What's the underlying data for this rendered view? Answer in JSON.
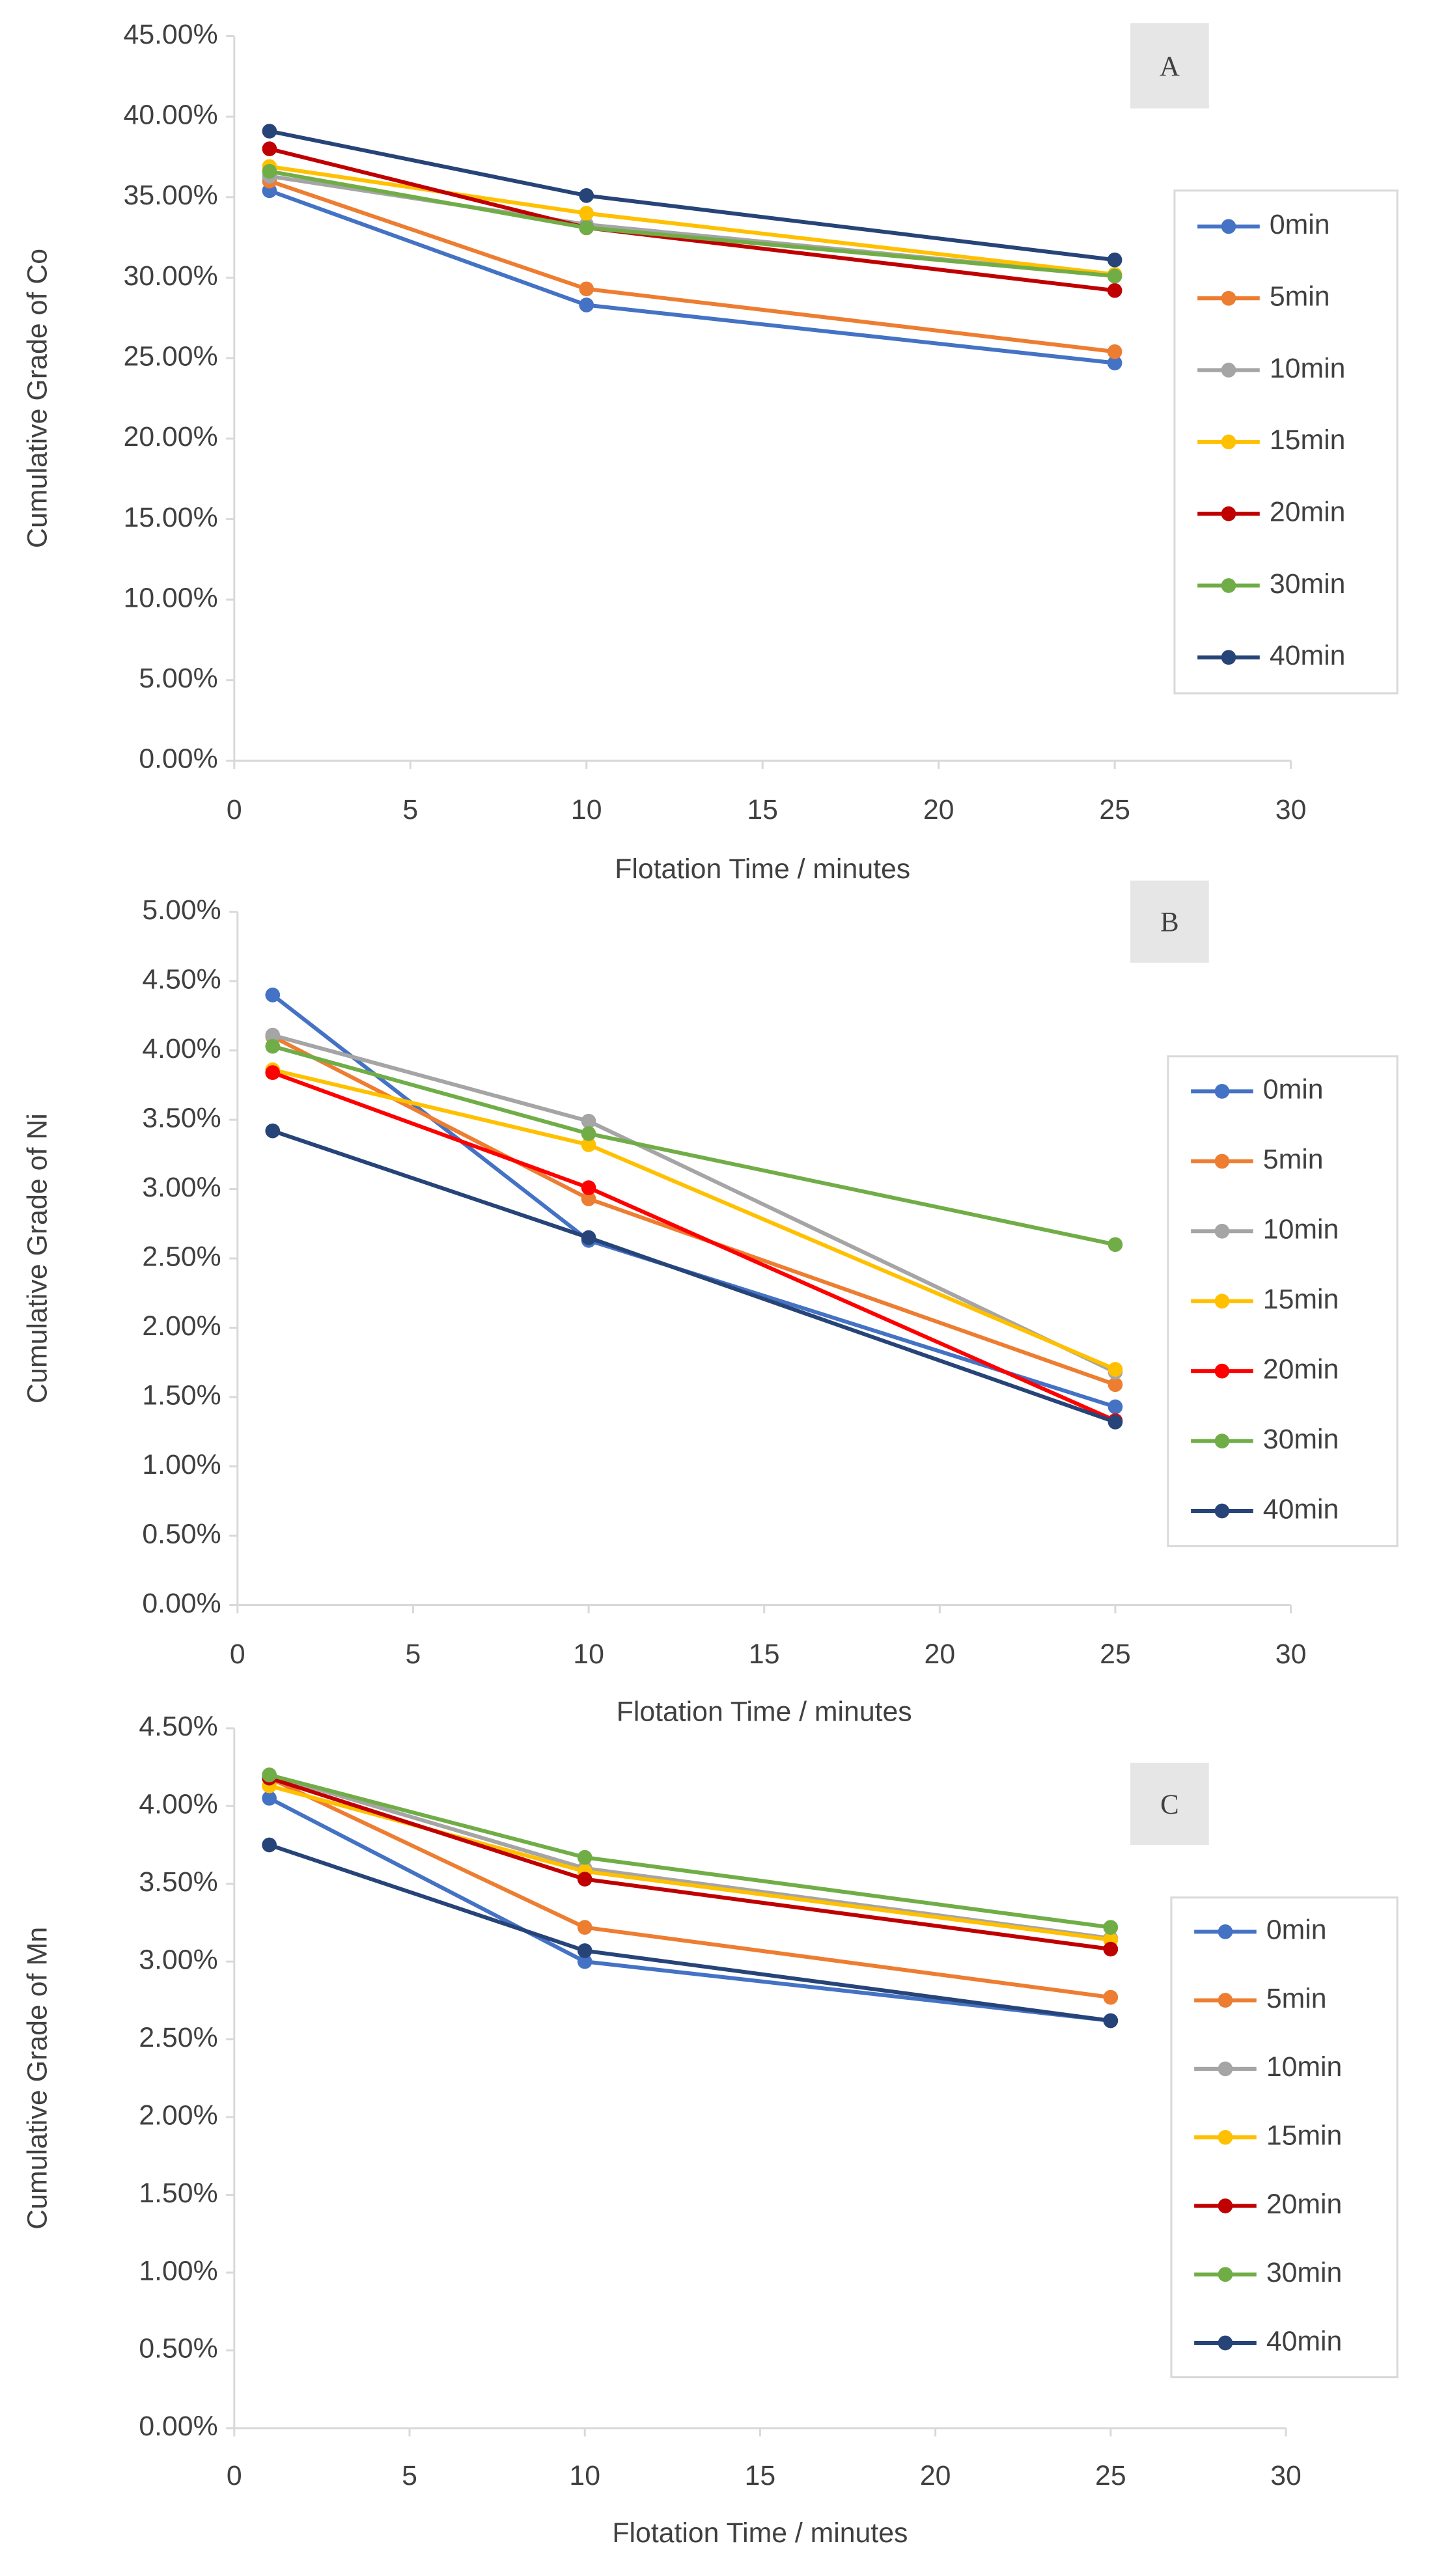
{
  "chart_data": [
    {
      "type": "line",
      "annotation": "A",
      "xlabel": "Flotation Time / minutes",
      "ylabel": "Cumulative Grade of Co",
      "x": [
        1,
        10,
        25
      ],
      "xlim": [
        0,
        30
      ],
      "xticks": [
        0,
        5,
        10,
        15,
        20,
        25,
        30
      ],
      "ylim": [
        0,
        45
      ],
      "yticks": [
        {
          "value": 0,
          "label": "0.00%"
        },
        {
          "value": 5,
          "label": "5.00%"
        },
        {
          "value": 10,
          "label": "10.00%"
        },
        {
          "value": 15,
          "label": "15.00%"
        },
        {
          "value": 20,
          "label": "20.00%"
        },
        {
          "value": 25,
          "label": "25.00%"
        },
        {
          "value": 30,
          "label": "30.00%"
        },
        {
          "value": 35,
          "label": "35.00%"
        },
        {
          "value": 40,
          "label": "40.00%"
        },
        {
          "value": 45,
          "label": "45.00%"
        }
      ],
      "series": [
        {
          "name": "0min",
          "color": "#4472c4",
          "values": [
            35.4,
            28.3,
            24.7
          ]
        },
        {
          "name": "5min",
          "color": "#ed7d31",
          "values": [
            36.0,
            29.3,
            25.4
          ]
        },
        {
          "name": "10min",
          "color": "#a5a5a5",
          "values": [
            36.3,
            33.3,
            30.1
          ]
        },
        {
          "name": "15min",
          "color": "#ffc000",
          "values": [
            36.9,
            34.0,
            30.2
          ]
        },
        {
          "name": "20min",
          "color": "#c00000",
          "values": [
            38.0,
            33.1,
            29.2
          ]
        },
        {
          "name": "30min",
          "color": "#70ad47",
          "values": [
            36.6,
            33.1,
            30.1
          ]
        },
        {
          "name": "40min",
          "color": "#264478",
          "values": [
            39.1,
            35.1,
            31.1
          ]
        }
      ]
    },
    {
      "type": "line",
      "annotation": "B",
      "xlabel": "Flotation Time / minutes",
      "ylabel": "Cumulative Grade of Ni",
      "x": [
        1,
        10,
        25
      ],
      "xlim": [
        0,
        30
      ],
      "xticks": [
        0,
        5,
        10,
        15,
        20,
        25,
        30
      ],
      "ylim": [
        0,
        5
      ],
      "yticks": [
        {
          "value": 0,
          "label": "0.00%"
        },
        {
          "value": 0.5,
          "label": "0.50%"
        },
        {
          "value": 1,
          "label": "1.00%"
        },
        {
          "value": 1.5,
          "label": "1.50%"
        },
        {
          "value": 2,
          "label": "2.00%"
        },
        {
          "value": 2.5,
          "label": "2.50%"
        },
        {
          "value": 3,
          "label": "3.00%"
        },
        {
          "value": 3.5,
          "label": "3.50%"
        },
        {
          "value": 4,
          "label": "4.00%"
        },
        {
          "value": 4.5,
          "label": "4.50%"
        },
        {
          "value": 5,
          "label": "5.00%"
        }
      ],
      "series": [
        {
          "name": "0min",
          "color": "#4472c4",
          "values": [
            4.4,
            2.63,
            1.43
          ]
        },
        {
          "name": "5min",
          "color": "#ed7d31",
          "values": [
            4.1,
            2.93,
            1.59
          ]
        },
        {
          "name": "10min",
          "color": "#a5a5a5",
          "values": [
            4.11,
            3.49,
            1.68
          ]
        },
        {
          "name": "15min",
          "color": "#ffc000",
          "values": [
            3.86,
            3.32,
            1.7
          ]
        },
        {
          "name": "20min",
          "color": "#ff0000",
          "values": [
            3.84,
            3.01,
            1.33
          ]
        },
        {
          "name": "30min",
          "color": "#70ad47",
          "values": [
            4.03,
            3.4,
            2.6
          ]
        },
        {
          "name": "40min",
          "color": "#264478",
          "values": [
            3.42,
            2.65,
            1.32
          ]
        }
      ]
    },
    {
      "type": "line",
      "annotation": "C",
      "xlabel": "Flotation Time / minutes",
      "ylabel": "Cumulative Grade of Mn",
      "x": [
        1,
        10,
        25
      ],
      "xlim": [
        0,
        30
      ],
      "xticks": [
        0,
        5,
        10,
        15,
        20,
        25,
        30
      ],
      "ylim": [
        0,
        4.5
      ],
      "yticks": [
        {
          "value": 0,
          "label": "0.00%"
        },
        {
          "value": 0.5,
          "label": "0.50%"
        },
        {
          "value": 1,
          "label": "1.00%"
        },
        {
          "value": 1.5,
          "label": "1.50%"
        },
        {
          "value": 2,
          "label": "2.00%"
        },
        {
          "value": 2.5,
          "label": "2.50%"
        },
        {
          "value": 3,
          "label": "3.00%"
        },
        {
          "value": 3.5,
          "label": "3.50%"
        },
        {
          "value": 4,
          "label": "4.00%"
        },
        {
          "value": 4.5,
          "label": "4.50%"
        }
      ],
      "series": [
        {
          "name": "0min",
          "color": "#4472c4",
          "values": [
            4.05,
            3.0,
            2.62
          ]
        },
        {
          "name": "5min",
          "color": "#ed7d31",
          "values": [
            4.18,
            3.22,
            2.77
          ]
        },
        {
          "name": "10min",
          "color": "#a5a5a5",
          "values": [
            4.2,
            3.6,
            3.15
          ]
        },
        {
          "name": "15min",
          "color": "#ffc000",
          "values": [
            4.13,
            3.58,
            3.14
          ]
        },
        {
          "name": "20min",
          "color": "#c00000",
          "values": [
            4.18,
            3.53,
            3.08
          ]
        },
        {
          "name": "30min",
          "color": "#70ad47",
          "values": [
            4.2,
            3.67,
            3.22
          ]
        },
        {
          "name": "40min",
          "color": "#264478",
          "values": [
            3.75,
            3.07,
            2.62
          ]
        }
      ]
    }
  ]
}
